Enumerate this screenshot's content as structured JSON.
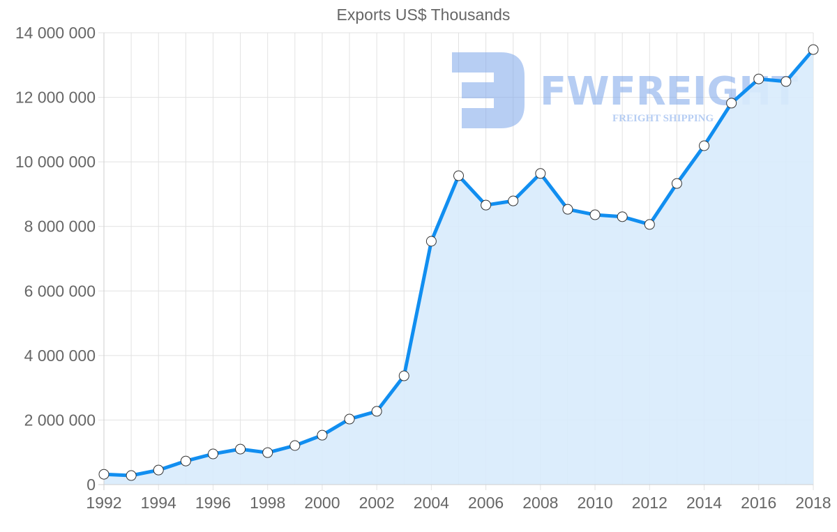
{
  "chart_data": {
    "type": "line",
    "title": "Exports US$ Thousands",
    "xlabel": "",
    "ylabel": "",
    "x": [
      1992,
      1993,
      1994,
      1995,
      1996,
      1997,
      1998,
      1999,
      2000,
      2001,
      2002,
      2003,
      2004,
      2005,
      2006,
      2007,
      2008,
      2009,
      2010,
      2011,
      2012,
      2013,
      2014,
      2015,
      2016,
      2017,
      2018
    ],
    "series": [
      {
        "name": "Exports US$ Thousands",
        "color": "#118ef0",
        "fill": "#d8ebfc",
        "values": [
          320000,
          280000,
          450000,
          730000,
          950000,
          1100000,
          990000,
          1210000,
          1530000,
          2030000,
          2270000,
          3370000,
          7540000,
          9570000,
          8660000,
          8790000,
          9640000,
          8530000,
          8360000,
          8300000,
          8060000,
          9330000,
          10500000,
          11820000,
          12570000,
          12490000,
          13480000
        ]
      }
    ],
    "ylim": [
      0,
      14000000
    ],
    "xlim": [
      1992,
      2018
    ],
    "yticks": [
      0,
      2000000,
      4000000,
      6000000,
      8000000,
      10000000,
      12000000,
      14000000
    ],
    "ytick_labels": [
      "0",
      "2 000 000",
      "4 000 000",
      "6 000 000",
      "8 000 000",
      "10 000 000",
      "12 000 000",
      "14 000 000"
    ],
    "xtick_labels": [
      "1992",
      "1994",
      "1996",
      "1998",
      "2000",
      "2002",
      "2004",
      "2006",
      "2008",
      "2010",
      "2012",
      "2014",
      "2016",
      "2018"
    ],
    "grid": true,
    "legend": null,
    "annotations": []
  },
  "watermark": {
    "brand": "FWFREIGHT",
    "tagline": "FREIGHT SHIPPING",
    "color": "#7ba6ea"
  }
}
